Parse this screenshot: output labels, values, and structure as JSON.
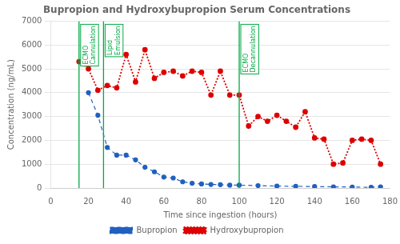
{
  "chart_data": {
    "type": "line",
    "title": "Bupropion and Hydroxybupropion Serum Concentrations",
    "xlabel": "Time since ingestion (hours)",
    "ylabel": "Concentration (ng/mL)",
    "xlim": [
      0,
      180
    ],
    "ylim": [
      0,
      7000
    ],
    "xticks": [
      0,
      20,
      40,
      60,
      80,
      100,
      120,
      140,
      160,
      180
    ],
    "yticks": [
      0,
      1000,
      2000,
      3000,
      4000,
      5000,
      6000,
      7000
    ],
    "grid": "y",
    "legend": "bottom",
    "series": [
      {
        "name": "Bupropion",
        "color": "#2060c0",
        "marker": "circle",
        "line_style": "dashed",
        "x": [
          20,
          25,
          30,
          35,
          40,
          45,
          50,
          55,
          60,
          65,
          70,
          75,
          80,
          85,
          90,
          95,
          100,
          110,
          120,
          130,
          140,
          150,
          160,
          170,
          175
        ],
        "values": [
          4000,
          3050,
          1700,
          1380,
          1380,
          1180,
          870,
          680,
          460,
          420,
          260,
          200,
          170,
          150,
          140,
          120,
          120,
          100,
          80,
          70,
          60,
          50,
          40,
          30,
          50
        ]
      },
      {
        "name": "Hydroxybupropion",
        "color": "#dd0000",
        "marker": "circle",
        "line_style": "dotted",
        "x": [
          15,
          20,
          25,
          30,
          35,
          40,
          45,
          50,
          55,
          60,
          65,
          70,
          75,
          80,
          85,
          90,
          95,
          100,
          105,
          110,
          115,
          120,
          125,
          130,
          135,
          140,
          145,
          150,
          155,
          160,
          165,
          170,
          175
        ],
        "values": [
          5300,
          5000,
          4100,
          4300,
          4200,
          5600,
          4450,
          5800,
          4600,
          4850,
          4900,
          4700,
          4900,
          4850,
          3900,
          4900,
          3900,
          3900,
          2600,
          3000,
          2800,
          3050,
          2800,
          2550,
          3200,
          2100,
          2050,
          1000,
          1050,
          2000,
          2050,
          2000,
          1000
        ]
      }
    ],
    "annotations": [
      {
        "x": 15,
        "label": "ECMO\nCannulation",
        "color": "#00aa44"
      },
      {
        "x": 28,
        "label": "Lipid\nEmulsion",
        "color": "#00aa44"
      },
      {
        "x": 100,
        "label": "ECMO\nDecannulation",
        "color": "#00aa44"
      }
    ]
  }
}
